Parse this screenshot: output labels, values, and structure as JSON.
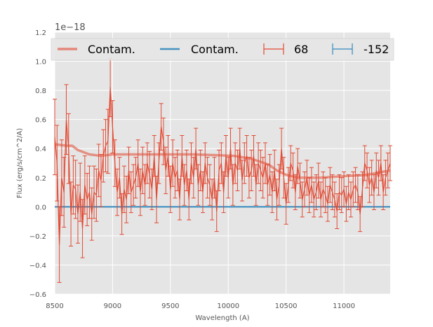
{
  "chart_data": {
    "type": "line",
    "title": "",
    "xlabel": "Wavelength (A)",
    "ylabel": "Flux (erg/s/cm^2/A)",
    "offset_text": "1e−18",
    "xlim": [
      8500,
      11400
    ],
    "ylim": [
      -0.6,
      1.2
    ],
    "x_ticks": [
      8500,
      9000,
      9500,
      10000,
      10500,
      11000
    ],
    "y_ticks": [
      -0.6,
      -0.4,
      -0.2,
      0.0,
      0.2,
      0.4,
      0.6,
      0.8,
      1.0,
      1.2
    ],
    "y_tick_labels": [
      "−0.6",
      "−0.4",
      "−0.2",
      "0.0",
      "0.2",
      "0.4",
      "0.6",
      "0.8",
      "1.0",
      "1.2"
    ],
    "grid": true,
    "legend_position": "top",
    "colors": {
      "red": "#E24A33",
      "blue": "#348ABD",
      "panel": "#E5E5E5"
    },
    "legend": [
      {
        "label": "Contam.",
        "kind": "line",
        "color": "#E24A33"
      },
      {
        "label": "Contam.",
        "kind": "line",
        "color": "#348ABD"
      },
      {
        "label": "68",
        "kind": "errorbar",
        "color": "#E24A33"
      },
      {
        "label": "-152",
        "kind": "errorbar",
        "color": "#348ABD"
      }
    ],
    "series": [
      {
        "name": "Contam.",
        "color": "#E24A33",
        "style": "thick-translucent",
        "x": [
          8500,
          8600,
          8650,
          8700,
          8800,
          8900,
          9000,
          9100,
          9300,
          9500,
          9700,
          9900,
          10050,
          10200,
          10350,
          10420,
          10500,
          10600,
          10800,
          11000,
          11200,
          11400
        ],
        "y": [
          0.43,
          0.42,
          0.42,
          0.39,
          0.36,
          0.35,
          0.36,
          0.36,
          0.36,
          0.36,
          0.36,
          0.355,
          0.35,
          0.33,
          0.29,
          0.25,
          0.22,
          0.2,
          0.2,
          0.21,
          0.22,
          0.25
        ]
      },
      {
        "name": "Contam.",
        "color": "#348ABD",
        "style": "line",
        "x": [
          8500,
          11400
        ],
        "y": [
          0.0,
          0.0
        ]
      },
      {
        "name": "68",
        "color": "#E24A33",
        "style": "errorbar",
        "x": [
          8500,
          8520,
          8540,
          8560,
          8580,
          8600,
          8620,
          8640,
          8660,
          8680,
          8700,
          8720,
          8740,
          8760,
          8780,
          8800,
          8820,
          8840,
          8860,
          8880,
          8900,
          8920,
          8940,
          8960,
          8980,
          9000,
          9020,
          9040,
          9060,
          9080,
          9100,
          9120,
          9140,
          9160,
          9180,
          9200,
          9220,
          9240,
          9260,
          9280,
          9300,
          9320,
          9340,
          9360,
          9380,
          9400,
          9420,
          9440,
          9460,
          9480,
          9500,
          9520,
          9540,
          9560,
          9580,
          9600,
          9620,
          9640,
          9660,
          9680,
          9700,
          9720,
          9740,
          9760,
          9780,
          9800,
          9820,
          9840,
          9860,
          9880,
          9900,
          9920,
          9940,
          9960,
          9980,
          10000,
          10020,
          10040,
          10060,
          10080,
          10100,
          10120,
          10140,
          10160,
          10180,
          10200,
          10220,
          10240,
          10260,
          10280,
          10300,
          10320,
          10340,
          10360,
          10380,
          10400,
          10420,
          10440,
          10460,
          10480,
          10500,
          10520,
          10540,
          10560,
          10580,
          10600,
          10620,
          10640,
          10660,
          10680,
          10700,
          10720,
          10740,
          10760,
          10780,
          10800,
          10820,
          10840,
          10860,
          10880,
          10900,
          10920,
          10940,
          10960,
          10980,
          11000,
          11020,
          11040,
          11060,
          11080,
          11100,
          11120,
          11140,
          11160,
          11180,
          11200,
          11220,
          11240,
          11260,
          11280,
          11300,
          11320,
          11340,
          11360,
          11380,
          11400
        ],
        "y": [
          0.48,
          0.3,
          -0.26,
          0.2,
          0.1,
          0.6,
          0.4,
          -0.05,
          0.15,
          0.12,
          -0.05,
          0.1,
          -0.15,
          0.15,
          0.05,
          0.1,
          -0.05,
          0.1,
          0.08,
          0.25,
          0.18,
          0.35,
          0.42,
          0.45,
          0.82,
          0.55,
          0.3,
          0.1,
          0.2,
          -0.05,
          0.12,
          0.05,
          0.25,
          0.1,
          0.15,
          0.2,
          0.3,
          0.1,
          0.25,
          0.15,
          0.3,
          0.22,
          0.12,
          0.35,
          0.05,
          0.3,
          0.55,
          0.45,
          0.25,
          0.35,
          0.12,
          0.3,
          0.2,
          0.25,
          0.05,
          0.35,
          0.15,
          0.25,
          0.05,
          0.3,
          0.2,
          0.4,
          0.15,
          0.25,
          0.1,
          0.3,
          0.2,
          0.15,
          0.05,
          0.2,
          -0.03,
          0.25,
          0.3,
          0.1,
          0.35,
          0.2,
          0.4,
          0.15,
          0.3,
          0.25,
          0.4,
          0.18,
          0.3,
          0.35,
          0.2,
          0.25,
          0.35,
          0.15,
          0.3,
          0.25,
          0.2,
          0.3,
          0.15,
          0.22,
          0.1,
          0.25,
          0.05,
          0.15,
          0.4,
          0.2,
          0.02,
          0.15,
          0.3,
          0.25,
          0.1,
          0.28,
          0.18,
          0.05,
          0.12,
          0.2,
          0.08,
          0.15,
          0.05,
          0.1,
          0.18,
          0.05,
          0.12,
          0.08,
          0.02,
          0.15,
          0.1,
          0.05,
          -0.03,
          0.1,
          0.08,
          0.12,
          0.02,
          0.1,
          0.05,
          0.12,
          0.15,
          0.1,
          -0.05,
          0.12,
          0.3,
          0.25,
          0.15,
          0.2,
          0.1,
          0.25,
          0.2,
          0.3,
          0.1,
          0.2,
          0.25,
          0.3
        ],
        "yerr": [
          0.26,
          0.26,
          0.26,
          0.26,
          0.24,
          0.24,
          0.24,
          0.22,
          0.2,
          0.2,
          0.2,
          0.2,
          0.2,
          0.2,
          0.18,
          0.18,
          0.18,
          0.18,
          0.18,
          0.18,
          0.18,
          0.18,
          0.18,
          0.22,
          0.2,
          0.18,
          0.16,
          0.16,
          0.14,
          0.14,
          0.16,
          0.16,
          0.16,
          0.14,
          0.14,
          0.14,
          0.16,
          0.16,
          0.16,
          0.14,
          0.14,
          0.16,
          0.14,
          0.14,
          0.16,
          0.14,
          0.16,
          0.16,
          0.16,
          0.14,
          0.16,
          0.16,
          0.14,
          0.14,
          0.14,
          0.14,
          0.14,
          0.14,
          0.14,
          0.14,
          0.14,
          0.14,
          0.14,
          0.14,
          0.14,
          0.14,
          0.14,
          0.14,
          0.14,
          0.14,
          0.14,
          0.14,
          0.14,
          0.14,
          0.14,
          0.14,
          0.14,
          0.14,
          0.14,
          0.14,
          0.14,
          0.14,
          0.14,
          0.14,
          0.14,
          0.14,
          0.14,
          0.14,
          0.14,
          0.14,
          0.14,
          0.14,
          0.14,
          0.14,
          0.14,
          0.14,
          0.14,
          0.14,
          0.14,
          0.14,
          0.14,
          0.12,
          0.12,
          0.12,
          0.12,
          0.12,
          0.12,
          0.12,
          0.12,
          0.12,
          0.12,
          0.12,
          0.12,
          0.12,
          0.12,
          0.12,
          0.12,
          0.12,
          0.12,
          0.12,
          0.12,
          0.12,
          0.12,
          0.12,
          0.12,
          0.12,
          0.12,
          0.12,
          0.12,
          0.12,
          0.12,
          0.12,
          0.12,
          0.12,
          0.12,
          0.12,
          0.12,
          0.12,
          0.12,
          0.12,
          0.12,
          0.12,
          0.12,
          0.12,
          0.12,
          0.12
        ]
      }
    ]
  }
}
